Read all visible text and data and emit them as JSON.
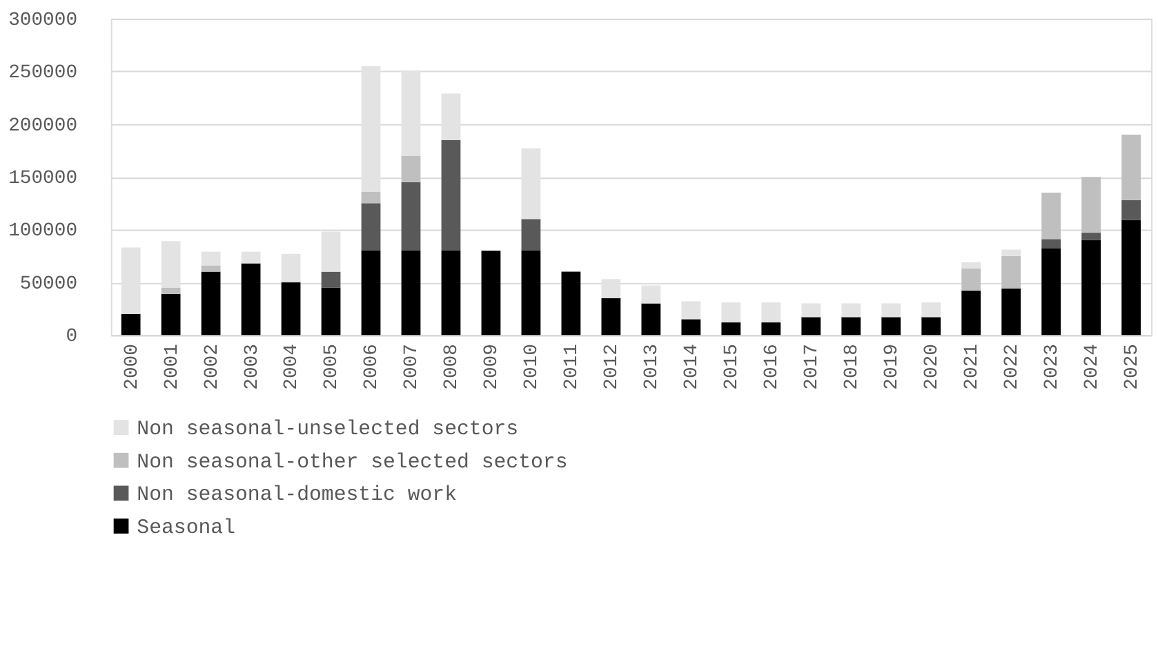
{
  "chart_data": {
    "type": "bar",
    "stacked": true,
    "categories": [
      "2000",
      "2001",
      "2002",
      "2003",
      "2004",
      "2005",
      "2006",
      "2007",
      "2008",
      "2009",
      "2010",
      "2011",
      "2012",
      "2013",
      "2014",
      "2015",
      "2016",
      "2017",
      "2018",
      "2019",
      "2020",
      "2021",
      "2022",
      "2023",
      "2024",
      "2025"
    ],
    "series": [
      {
        "name": "Seasonal",
        "color": "#000000",
        "values": [
          20000,
          39000,
          60000,
          68000,
          50000,
          45000,
          80000,
          80000,
          80000,
          80000,
          80000,
          60000,
          35000,
          30000,
          15000,
          12000,
          12000,
          17000,
          17000,
          17000,
          17000,
          42000,
          44000,
          82000,
          90000,
          109000
        ]
      },
      {
        "name": "Non seasonal-domestic work",
        "color": "#595959",
        "values": [
          null,
          null,
          null,
          null,
          null,
          15000,
          45000,
          65000,
          105000,
          null,
          30000,
          null,
          null,
          null,
          null,
          null,
          null,
          null,
          null,
          null,
          null,
          null,
          null,
          9000,
          7000,
          19000
        ]
      },
      {
        "name": "Non seasonal-other selected sectors",
        "color": "#bfbfbf",
        "values": [
          null,
          6000,
          6000,
          null,
          null,
          null,
          11000,
          25000,
          null,
          null,
          null,
          null,
          null,
          null,
          null,
          null,
          null,
          null,
          null,
          null,
          null,
          21000,
          31000,
          44000,
          53000,
          62000
        ]
      },
      {
        "name": "Non seasonal-unselected sectors",
        "color": "#e3e3e3",
        "values": [
          63000,
          44000,
          13000,
          11000,
          27000,
          38000,
          119000,
          81000,
          44000,
          null,
          67000,
          null,
          18000,
          17000,
          17000,
          19000,
          19000,
          13000,
          13000,
          13000,
          14000,
          6000,
          6000,
          null,
          null,
          null
        ]
      }
    ],
    "ylim": [
      0,
      300000
    ],
    "yticks": [
      0,
      50000,
      100000,
      150000,
      200000,
      250000,
      300000
    ],
    "grid": "y",
    "legend": "bottom"
  }
}
